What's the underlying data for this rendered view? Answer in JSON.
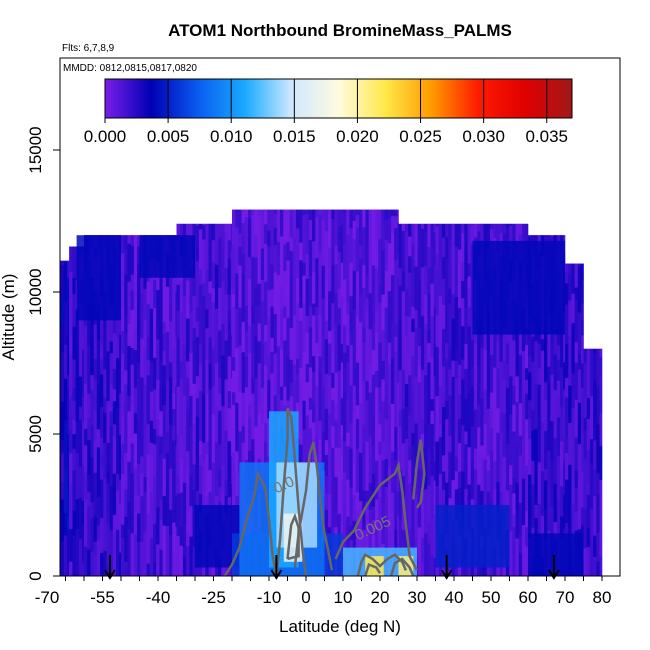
{
  "chart_data": {
    "type": "heatmap",
    "title": "ATOM1 Northbound BromineMass_PALMS",
    "flights_note": "Flts: 6,7,8,9",
    "dates_note": "MMDD: 0812,0815,0817,0820",
    "xlabel": "Latitude (deg N)",
    "ylabel": "Altitude (m)",
    "xlim": [
      -70,
      80
    ],
    "ylim": [
      0,
      18000
    ],
    "x_ticks": [
      -70,
      -55,
      -40,
      -25,
      -10,
      0,
      10,
      20,
      30,
      40,
      50,
      60,
      70,
      80
    ],
    "y_ticks": [
      0,
      5000,
      10000,
      15000
    ],
    "colorbar": {
      "min": 0.0,
      "max": 0.037,
      "ticks": [
        "0.000",
        "0.005",
        "0.010",
        "0.015",
        "0.020",
        "0.025",
        "0.030",
        "0.035"
      ],
      "tick_values": [
        0.0,
        0.005,
        0.01,
        0.015,
        0.02,
        0.025,
        0.03,
        0.035
      ],
      "colors": [
        "#7a1ee8",
        "#0000b4",
        "#0a5cf0",
        "#1aaaff",
        "#cfe8ff",
        "#fffbe0",
        "#ffe84a",
        "#ff9a00",
        "#ff1a00",
        "#e00000",
        "#a01818"
      ]
    },
    "contour_labels": [
      {
        "text": "0.005",
        "lat": 14,
        "alt": 1250
      },
      {
        "text": "0.0",
        "lat": -8,
        "alt": 2900
      }
    ],
    "flight_arrows_lat": [
      -53,
      -8,
      38,
      67
    ],
    "field": {
      "columns": [
        {
          "lat": [
            -68,
            -64
          ],
          "top": 11100,
          "value": 0.003
        },
        {
          "lat": [
            -64,
            -60
          ],
          "top": 11600,
          "value": 0.002
        },
        {
          "lat": [
            -60,
            -50
          ],
          "top": 12000,
          "value": 0.002
        },
        {
          "lat": [
            -50,
            -35
          ],
          "top": 12000,
          "value": 0.0015
        },
        {
          "lat": [
            -35,
            -20
          ],
          "top": 12400,
          "value": 0.0015
        },
        {
          "lat": [
            -20,
            10
          ],
          "top": 12900,
          "value": 0.001
        },
        {
          "lat": [
            10,
            25
          ],
          "top": 12900,
          "value": 0.001
        },
        {
          "lat": [
            25,
            35
          ],
          "top": 12400,
          "value": 0.0015
        },
        {
          "lat": [
            35,
            60
          ],
          "top": 12400,
          "value": 0.0015
        },
        {
          "lat": [
            60,
            70
          ],
          "top": 12000,
          "value": 0.002
        },
        {
          "lat": [
            70,
            75
          ],
          "top": 11000,
          "value": 0.002
        },
        {
          "lat": [
            75,
            80
          ],
          "top": 8000,
          "value": 0.002
        }
      ],
      "patches": [
        {
          "lat": [
            -62,
            -50
          ],
          "alt": [
            9000,
            12000
          ],
          "value": 0.004
        },
        {
          "lat": [
            -45,
            -30
          ],
          "alt": [
            10500,
            12000
          ],
          "value": 0.004
        },
        {
          "lat": [
            45,
            70
          ],
          "alt": [
            8500,
            11800
          ],
          "value": 0.004
        },
        {
          "lat": [
            -30,
            -18
          ],
          "alt": [
            300,
            2500
          ],
          "value": 0.004
        },
        {
          "lat": [
            -20,
            10
          ],
          "alt": [
            0,
            1500
          ],
          "value": 0.006
        },
        {
          "lat": [
            -18,
            5
          ],
          "alt": [
            0,
            4000
          ],
          "value": 0.0085
        },
        {
          "lat": [
            -10,
            -2
          ],
          "alt": [
            300,
            5800
          ],
          "value": 0.011
        },
        {
          "lat": [
            -8,
            3
          ],
          "alt": [
            1000,
            4000
          ],
          "value": 0.014
        },
        {
          "lat": [
            -6,
            -1
          ],
          "alt": [
            500,
            2200
          ],
          "value": 0.017
        },
        {
          "lat": [
            10,
            30
          ],
          "alt": [
            0,
            1000
          ],
          "value": 0.012
        },
        {
          "lat": [
            16,
            21
          ],
          "alt": [
            0,
            700
          ],
          "value": 0.022
        },
        {
          "lat": [
            25,
            29
          ],
          "alt": [
            0,
            700
          ],
          "value": 0.021
        },
        {
          "lat": [
            35,
            55
          ],
          "alt": [
            300,
            2500
          ],
          "value": 0.005
        },
        {
          "lat": [
            60,
            75
          ],
          "alt": [
            0,
            1500
          ],
          "value": 0.004
        }
      ]
    }
  }
}
